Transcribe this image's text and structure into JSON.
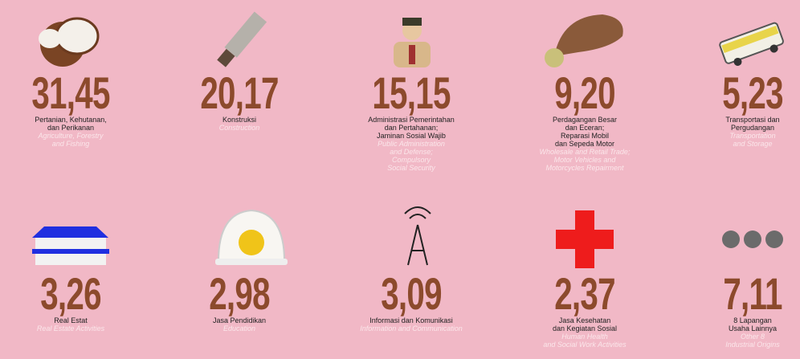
{
  "items": [
    {
      "value": "31,45",
      "label": [
        "Pertanian, Kehutanan,",
        "dan Perikanan"
      ],
      "label_en": [
        "Agriculture, Forestry",
        "and Fishing"
      ]
    },
    {
      "value": "20,17",
      "label": [
        "Konstruksi"
      ],
      "label_en": [
        "Construction"
      ]
    },
    {
      "value": "15,15",
      "label": [
        "Administrasi Pemerintahan",
        "dan Pertahanan;",
        "Jaminan Sosial Wajib"
      ],
      "label_en": [
        "Public Administration",
        "and Defense;",
        "Compulsory",
        "Social Security"
      ]
    },
    {
      "value": "9,20",
      "label": [
        "Perdagangan Besar",
        "dan Eceran;",
        "Reparasi Mobil",
        "dan Sepeda Motor"
      ],
      "label_en": [
        "Wholesale and Retail Trade;",
        "Motor Vehicles and",
        "Motorcycles Repairment"
      ]
    },
    {
      "value": "5,23",
      "label": [
        "Transportasi dan",
        "Pergudangan"
      ],
      "label_en": [
        "Transportation",
        "and Storage"
      ]
    },
    {
      "value": "3,26",
      "label": [
        "Real Estat"
      ],
      "label_en": [
        "Real Estate Activities"
      ]
    },
    {
      "value": "2,98",
      "label": [
        "Jasa Pendidikan"
      ],
      "label_en": [
        "Education"
      ]
    },
    {
      "value": "3,09",
      "label": [
        "Informasi dan Komunikasi"
      ],
      "label_en": [
        "Information and Communication"
      ]
    },
    {
      "value": "2,37",
      "label": [
        "Jasa Kesehatan",
        "dan Kegiatan Sosial"
      ],
      "label_en": [
        "Human Health",
        "and Social Work Activities"
      ]
    },
    {
      "value": "7,11",
      "label": [
        "8 Lapangan",
        "Usaha Lainnya"
      ],
      "label_en": [
        "Other 8",
        "Industrial Origins"
      ]
    }
  ]
}
